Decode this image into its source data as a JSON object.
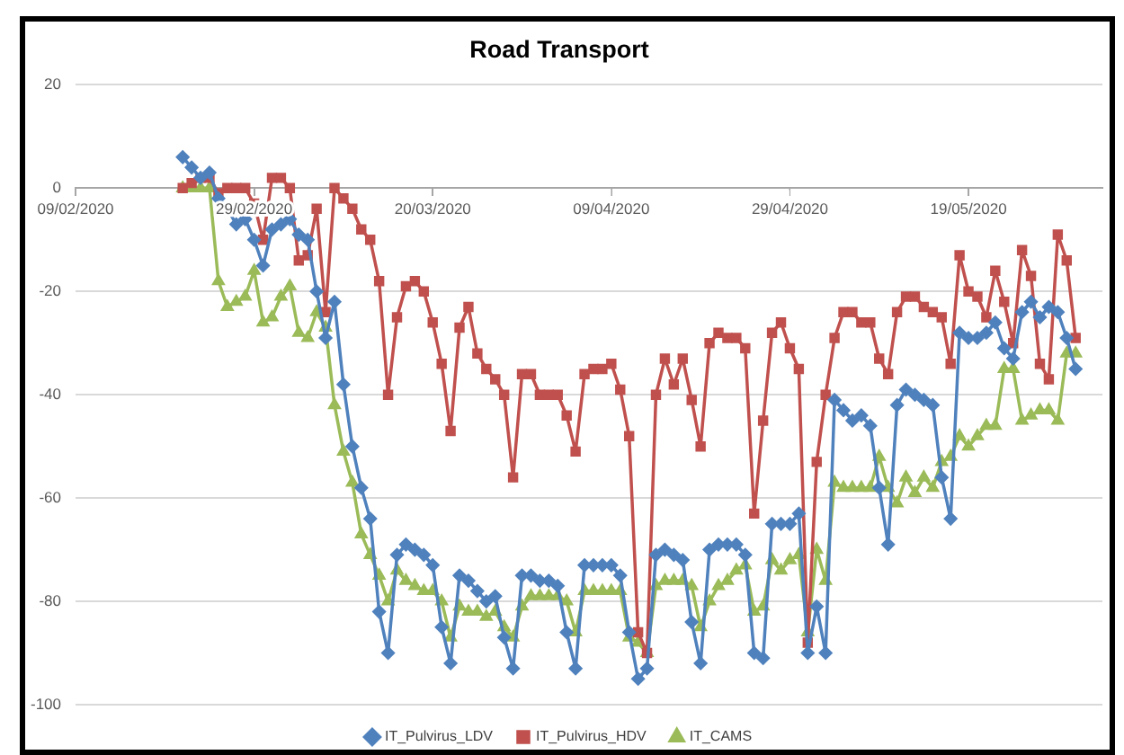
{
  "chart_data": {
    "type": "line",
    "title": "Road Transport",
    "x": [
      "2020-02-21",
      "2020-02-22",
      "2020-02-23",
      "2020-02-24",
      "2020-02-25",
      "2020-02-26",
      "2020-02-27",
      "2020-02-28",
      "2020-02-29",
      "2020-03-01",
      "2020-03-02",
      "2020-03-03",
      "2020-03-04",
      "2020-03-05",
      "2020-03-06",
      "2020-03-07",
      "2020-03-08",
      "2020-03-09",
      "2020-03-10",
      "2020-03-11",
      "2020-03-12",
      "2020-03-13",
      "2020-03-14",
      "2020-03-15",
      "2020-03-16",
      "2020-03-17",
      "2020-03-18",
      "2020-03-19",
      "2020-03-20",
      "2020-03-21",
      "2020-03-22",
      "2020-03-23",
      "2020-03-24",
      "2020-03-25",
      "2020-03-26",
      "2020-03-27",
      "2020-03-28",
      "2020-03-29",
      "2020-03-30",
      "2020-03-31",
      "2020-04-01",
      "2020-04-02",
      "2020-04-03",
      "2020-04-04",
      "2020-04-05",
      "2020-04-06",
      "2020-04-07",
      "2020-04-08",
      "2020-04-09",
      "2020-04-10",
      "2020-04-11",
      "2020-04-12",
      "2020-04-13",
      "2020-04-14",
      "2020-04-15",
      "2020-04-16",
      "2020-04-17",
      "2020-04-18",
      "2020-04-19",
      "2020-04-20",
      "2020-04-21",
      "2020-04-22",
      "2020-04-23",
      "2020-04-24",
      "2020-04-25",
      "2020-04-26",
      "2020-04-27",
      "2020-04-28",
      "2020-04-29",
      "2020-04-30",
      "2020-05-01",
      "2020-05-02",
      "2020-05-03",
      "2020-05-04",
      "2020-05-05",
      "2020-05-06",
      "2020-05-07",
      "2020-05-08",
      "2020-05-09",
      "2020-05-10",
      "2020-05-11",
      "2020-05-12",
      "2020-05-13",
      "2020-05-14",
      "2020-05-15",
      "2020-05-16",
      "2020-05-17",
      "2020-05-18",
      "2020-05-19",
      "2020-05-20",
      "2020-05-21",
      "2020-05-22",
      "2020-05-23",
      "2020-05-24",
      "2020-05-25",
      "2020-05-26",
      "2020-05-27",
      "2020-05-28",
      "2020-05-29",
      "2020-05-30",
      "2020-05-31"
    ],
    "xlim": [
      "2020-02-09",
      "2020-06-03"
    ],
    "xticks": [
      {
        "value": "2020-02-09",
        "label": "09/02/2020"
      },
      {
        "value": "2020-02-29",
        "label": "29/02/2020"
      },
      {
        "value": "2020-03-20",
        "label": "20/03/2020"
      },
      {
        "value": "2020-04-09",
        "label": "09/04/2020"
      },
      {
        "value": "2020-04-29",
        "label": "29/04/2020"
      },
      {
        "value": "2020-05-19",
        "label": "19/05/2020"
      }
    ],
    "ylim": [
      -100,
      20
    ],
    "yticks": [
      20,
      0,
      -20,
      -40,
      -60,
      -80,
      -100
    ],
    "grid": "y",
    "legend": "bottom",
    "series": [
      {
        "name": "IT_Pulvirus_LDV",
        "color": "#4f81bd",
        "marker": "diamond",
        "values": [
          6,
          4,
          2,
          3,
          -2,
          -4,
          -7,
          -6,
          -10,
          -15,
          -8,
          -7,
          -6,
          -9,
          -10,
          -20,
          -29,
          -22,
          -38,
          -50,
          -58,
          -64,
          -82,
          -90,
          -71,
          -69,
          -70,
          -71,
          -73,
          -85,
          -92,
          -75,
          -76,
          -78,
          -80,
          -79,
          -87,
          -93,
          -75,
          -75,
          -76,
          -76,
          -77,
          -86,
          -93,
          -73,
          -73,
          -73,
          -73,
          -75,
          -86,
          -95,
          -93,
          -71,
          -70,
          -71,
          -72,
          -84,
          -92,
          -70,
          -69,
          -69,
          -69,
          -71,
          -90,
          -91,
          -65,
          -65,
          -65,
          -63,
          -90,
          -81,
          -90,
          -41,
          -43,
          -45,
          -44,
          -46,
          -58,
          -69,
          -42,
          -39,
          -40,
          -41,
          -42,
          -56,
          -64,
          -28,
          -29,
          -29,
          -28,
          -26,
          -31,
          -33,
          -24,
          -22,
          -25,
          -23,
          -24,
          -29,
          -35
        ]
      },
      {
        "name": "IT_Pulvirus_HDV",
        "color": "#c0504d",
        "marker": "square",
        "values": [
          0,
          1,
          2,
          2,
          -1,
          0,
          0,
          0,
          -3,
          -10,
          2,
          2,
          0,
          -14,
          -13,
          -4,
          -24,
          0,
          -2,
          -4,
          -8,
          -10,
          -18,
          -40,
          -25,
          -19,
          -18,
          -20,
          -26,
          -34,
          -47,
          -27,
          -23,
          -32,
          -35,
          -37,
          -40,
          -56,
          -36,
          -36,
          -40,
          -40,
          -40,
          -44,
          -51,
          -36,
          -35,
          -35,
          -34,
          -39,
          -48,
          -86,
          -90,
          -40,
          -33,
          -38,
          -33,
          -41,
          -50,
          -30,
          -28,
          -29,
          -29,
          -31,
          -63,
          -45,
          -28,
          -26,
          -31,
          -35,
          -88,
          -53,
          -40,
          -29,
          -24,
          -24,
          -26,
          -26,
          -33,
          -36,
          -24,
          -21,
          -21,
          -23,
          -24,
          -25,
          -34,
          -13,
          -20,
          -21,
          -25,
          -16,
          -22,
          -30,
          -12,
          -17,
          -34,
          -37,
          -9,
          -14,
          -29
        ]
      },
      {
        "name": "IT_CAMS",
        "color": "#9bbb59",
        "marker": "triangle",
        "values": [
          0,
          0,
          0,
          0,
          -18,
          -23,
          -22,
          -21,
          -16,
          -26,
          -25,
          -21,
          -19,
          -28,
          -29,
          -24,
          -27,
          -42,
          -51,
          -57,
          -67,
          -71,
          -75,
          -80,
          -74,
          -76,
          -77,
          -78,
          -78,
          -80,
          -87,
          -81,
          -82,
          -82,
          -83,
          -82,
          -85,
          -87,
          -81,
          -79,
          -79,
          -79,
          -79,
          -80,
          -86,
          -78,
          -78,
          -78,
          -78,
          -78,
          -87,
          -88,
          -90,
          -77,
          -76,
          -76,
          -76,
          -77,
          -85,
          -80,
          -77,
          -76,
          -74,
          -73,
          -82,
          -81,
          -72,
          -74,
          -72,
          -71,
          -86,
          -70,
          -76,
          -57,
          -58,
          -58,
          -58,
          -58,
          -52,
          -58,
          -61,
          -56,
          -59,
          -56,
          -58,
          -53,
          -52,
          -48,
          -50,
          -48,
          -46,
          -46,
          -35,
          -35,
          -45,
          -44,
          -43,
          -43,
          -45,
          -32,
          -32
        ]
      }
    ]
  }
}
